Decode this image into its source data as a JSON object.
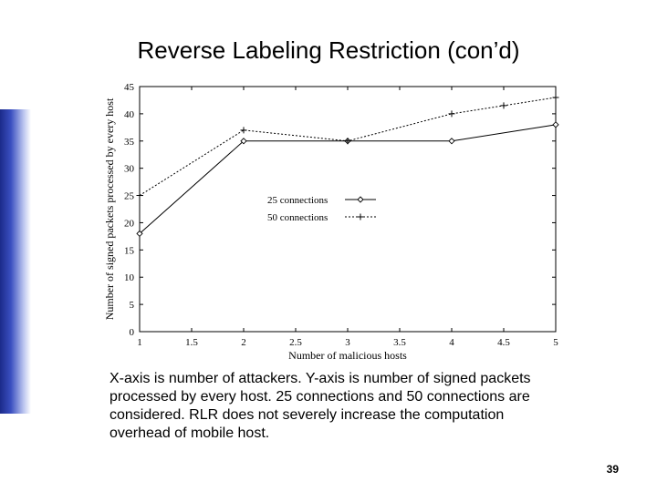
{
  "slide": {
    "title": "Reverse Labeling Restriction (con’d)",
    "caption": "X-axis is number of attackers. Y-axis is number of signed packets processed by every host. 25 connections and 50 connections are considered. RLR does not severely increase the computation overhead of mobile host.",
    "page_number": "39"
  },
  "chart_data": {
    "type": "line",
    "title": "",
    "xlabel": "Number of malicious hosts",
    "ylabel": "Number of signed packets processed by every host",
    "xlim": [
      1,
      5
    ],
    "ylim": [
      0,
      45
    ],
    "xticks": [
      1,
      1.5,
      2,
      2.5,
      3,
      3.5,
      4,
      4.5,
      5
    ],
    "yticks": [
      0,
      5,
      10,
      15,
      20,
      25,
      30,
      35,
      40,
      45
    ],
    "legend_position": "center-left",
    "grid": false,
    "series": [
      {
        "name": "25 connections",
        "marker": "diamond",
        "line": "solid",
        "x": [
          1,
          2,
          3,
          4,
          5
        ],
        "y": [
          18,
          35,
          35,
          35,
          38
        ]
      },
      {
        "name": "50 connections",
        "marker": "plus",
        "line": "dotted",
        "x": [
          1,
          2,
          3,
          4,
          4.5,
          5
        ],
        "y": [
          25,
          37,
          35,
          40,
          41.5,
          43
        ]
      }
    ]
  }
}
